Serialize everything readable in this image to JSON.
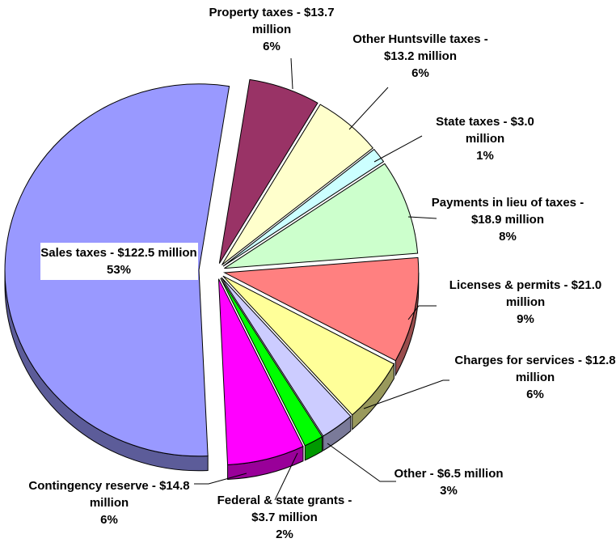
{
  "chart_data": {
    "type": "pie",
    "labels": [
      "Property taxes - $13.7 million",
      "Other Huntsville taxes - $13.2 million",
      "State taxes - $3.0 million",
      "Payments in lieu of taxes - $18.9 million",
      "Licenses & permits - $21.0 million",
      "Charges for services - $12.8 million",
      "Other - $6.5 million",
      "Federal & state grants - $3.7 million",
      "Contingency reserve - $14.8 million",
      "Sales taxes - $122.5 million"
    ],
    "values": [
      13.7,
      13.2,
      3.0,
      18.9,
      21.0,
      12.8,
      6.5,
      3.7,
      14.8,
      122.5
    ],
    "percents": [
      6,
      6,
      1,
      8,
      9,
      6,
      3,
      2,
      6,
      53
    ],
    "percent_labels": [
      "6%",
      "6%",
      "1%",
      "8%",
      "9%",
      "6%",
      "3%",
      "2%",
      "6%",
      "53%"
    ],
    "colors": [
      "#993366",
      "#ffffcc",
      "#ccffff",
      "#ccffcc",
      "#ff8080",
      "#ffff99",
      "#ccccff",
      "#00ff00",
      "#ff00ff",
      "#9999ff"
    ]
  }
}
